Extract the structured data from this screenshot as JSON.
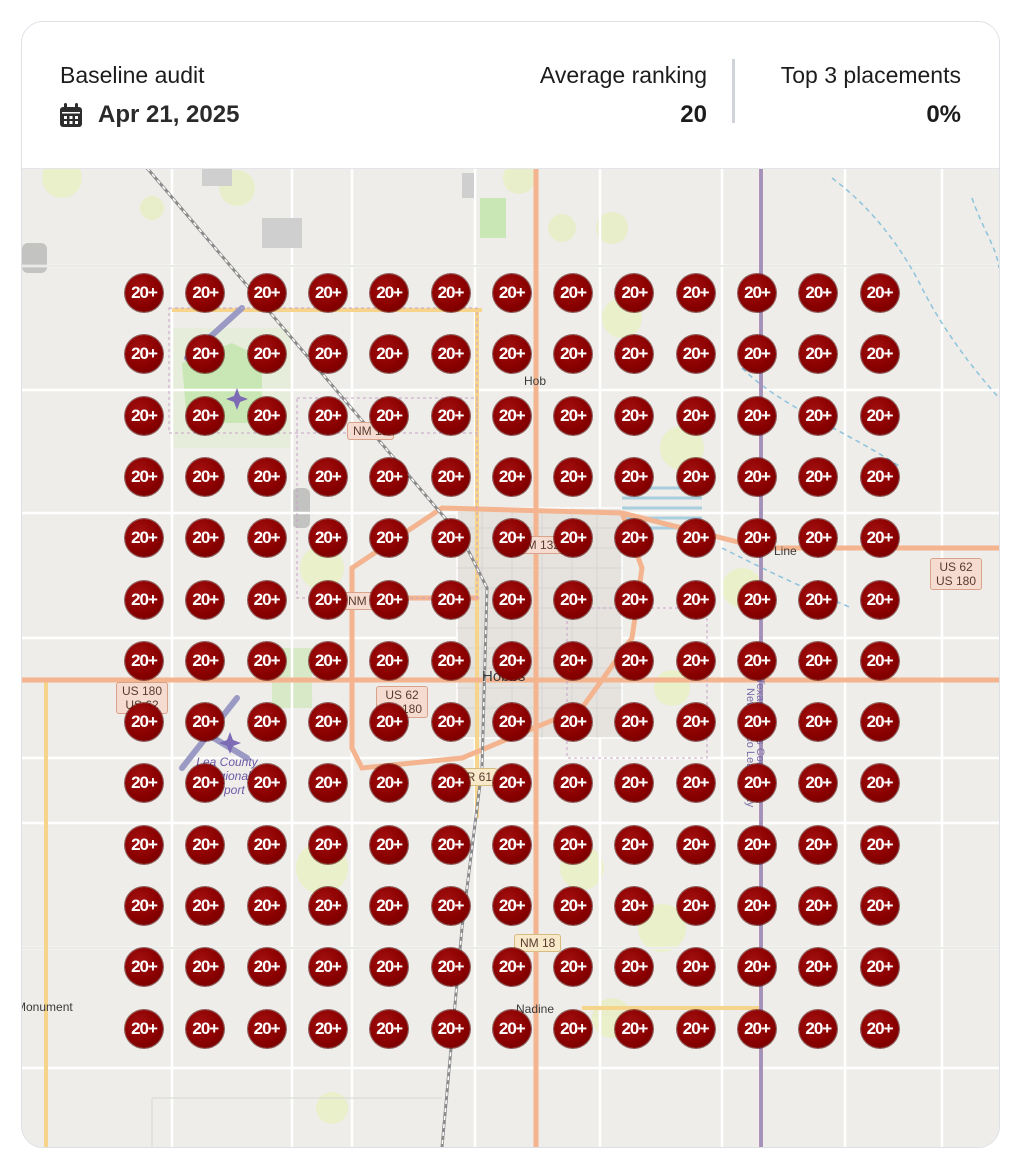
{
  "header": {
    "audit_label": "Baseline audit",
    "audit_date": "Apr 21, 2025",
    "calendar_icon": "calendar-icon",
    "average_ranking": {
      "label": "Average ranking",
      "value": "20"
    },
    "top3_placements": {
      "label": "Top 3 placements",
      "value": "0%"
    }
  },
  "grid": {
    "rows": 13,
    "cols": 13,
    "marker_label": "20+",
    "marker_color": "#8a0000"
  },
  "map": {
    "place_labels": {
      "hobbs_north": "Hob",
      "hobbs_center": "Hobbs",
      "line": "Line",
      "monument": "Monument",
      "nadine": "Nadine",
      "airport": "Lea County Regional Airport",
      "county_line": "Texas Gaines County",
      "county_line_2": "New Mexico Lea County"
    },
    "road_shields": {
      "nm18_north": "NM 18",
      "nm132": "NM 132",
      "us62_180_east": "US 62\nUS 180",
      "nm208": "NM 208",
      "us62_180_center": "US 62\nUS 180",
      "us62_west": "US 180\nUS 62",
      "cr61": "CR 61",
      "nm18_south": "NM 18"
    },
    "colors": {
      "land": "#eeede9",
      "major_road": "#f3b48f",
      "secondary_road": "#f7d48b",
      "park": "#c9e7b5",
      "woods": "#e9efc7"
    }
  }
}
